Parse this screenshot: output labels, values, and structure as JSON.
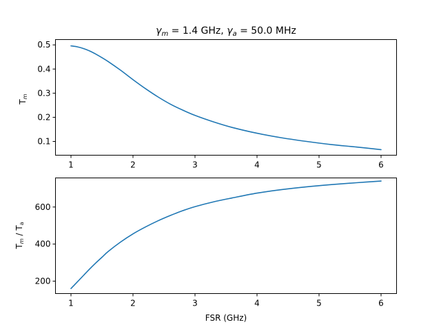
{
  "colors": {
    "series": "#1f77b4",
    "axes": "#000000",
    "background": "#ffffff"
  },
  "chart_data": [
    {
      "type": "line",
      "title": "γm = 1.4 GHz, γa = 50.0 MHz",
      "title_parts": [
        {
          "text": "γ",
          "style": "italic"
        },
        {
          "text": "m",
          "style": "italic-sub"
        },
        {
          "text": " = 1.4 GHz, ",
          "style": "normal"
        },
        {
          "text": "γ",
          "style": "italic"
        },
        {
          "text": "a",
          "style": "italic-sub"
        },
        {
          "text": " = 50.0 MHz",
          "style": "normal"
        }
      ],
      "xlabel": "",
      "ylabel": "Tm",
      "ylabel_parts": [
        {
          "text": "T",
          "style": "normal"
        },
        {
          "text": "m",
          "style": "italic-sub"
        }
      ],
      "xlim": [
        0.75,
        6.25
      ],
      "ylim": [
        0.043,
        0.522
      ],
      "xticks": [
        1,
        2,
        3,
        4,
        5,
        6
      ],
      "xtick_labels": [
        "1",
        "2",
        "3",
        "4",
        "5",
        "6"
      ],
      "yticks": [
        0.1,
        0.2,
        0.3,
        0.4,
        0.5
      ],
      "ytick_labels": [
        "0.1",
        "0.2",
        "0.3",
        "0.4",
        "0.5"
      ],
      "grid": false,
      "x": [
        1.0,
        1.1,
        1.2,
        1.3,
        1.4,
        1.5,
        1.6,
        1.8,
        2.0,
        2.2,
        2.4,
        2.6,
        2.8,
        3.0,
        3.3,
        3.6,
        4.0,
        4.4,
        4.8,
        5.2,
        5.6,
        6.0
      ],
      "series": [
        {
          "values": [
            0.496,
            0.492,
            0.485,
            0.475,
            0.462,
            0.447,
            0.431,
            0.395,
            0.356,
            0.319,
            0.285,
            0.255,
            0.23,
            0.208,
            0.181,
            0.158,
            0.134,
            0.115,
            0.1,
            0.087,
            0.077,
            0.066
          ]
        }
      ]
    },
    {
      "type": "line",
      "title": "",
      "xlabel": "FSR (GHz)",
      "ylabel": "Tm / Ta",
      "ylabel_parts": [
        {
          "text": "T",
          "style": "normal"
        },
        {
          "text": "m",
          "style": "italic-sub"
        },
        {
          "text": " / T",
          "style": "normal"
        },
        {
          "text": "a",
          "style": "sub"
        }
      ],
      "xlim": [
        0.75,
        6.25
      ],
      "ylim": [
        133,
        757
      ],
      "xticks": [
        1,
        2,
        3,
        4,
        5,
        6
      ],
      "xtick_labels": [
        "1",
        "2",
        "3",
        "4",
        "5",
        "6"
      ],
      "yticks": [
        200,
        400,
        600
      ],
      "ytick_labels": [
        "200",
        "400",
        "600"
      ],
      "grid": false,
      "x": [
        1.0,
        1.1,
        1.2,
        1.3,
        1.4,
        1.5,
        1.6,
        1.8,
        2.0,
        2.2,
        2.4,
        2.6,
        2.8,
        3.0,
        3.3,
        3.6,
        4.0,
        4.4,
        4.8,
        5.2,
        5.6,
        6.0
      ],
      "series": [
        {
          "values": [
            160,
            195,
            230,
            265,
            298,
            329,
            360,
            411,
            455,
            492,
            525,
            554,
            580,
            602,
            628,
            649,
            675,
            694,
            709,
            721,
            731,
            740
          ]
        }
      ]
    }
  ]
}
